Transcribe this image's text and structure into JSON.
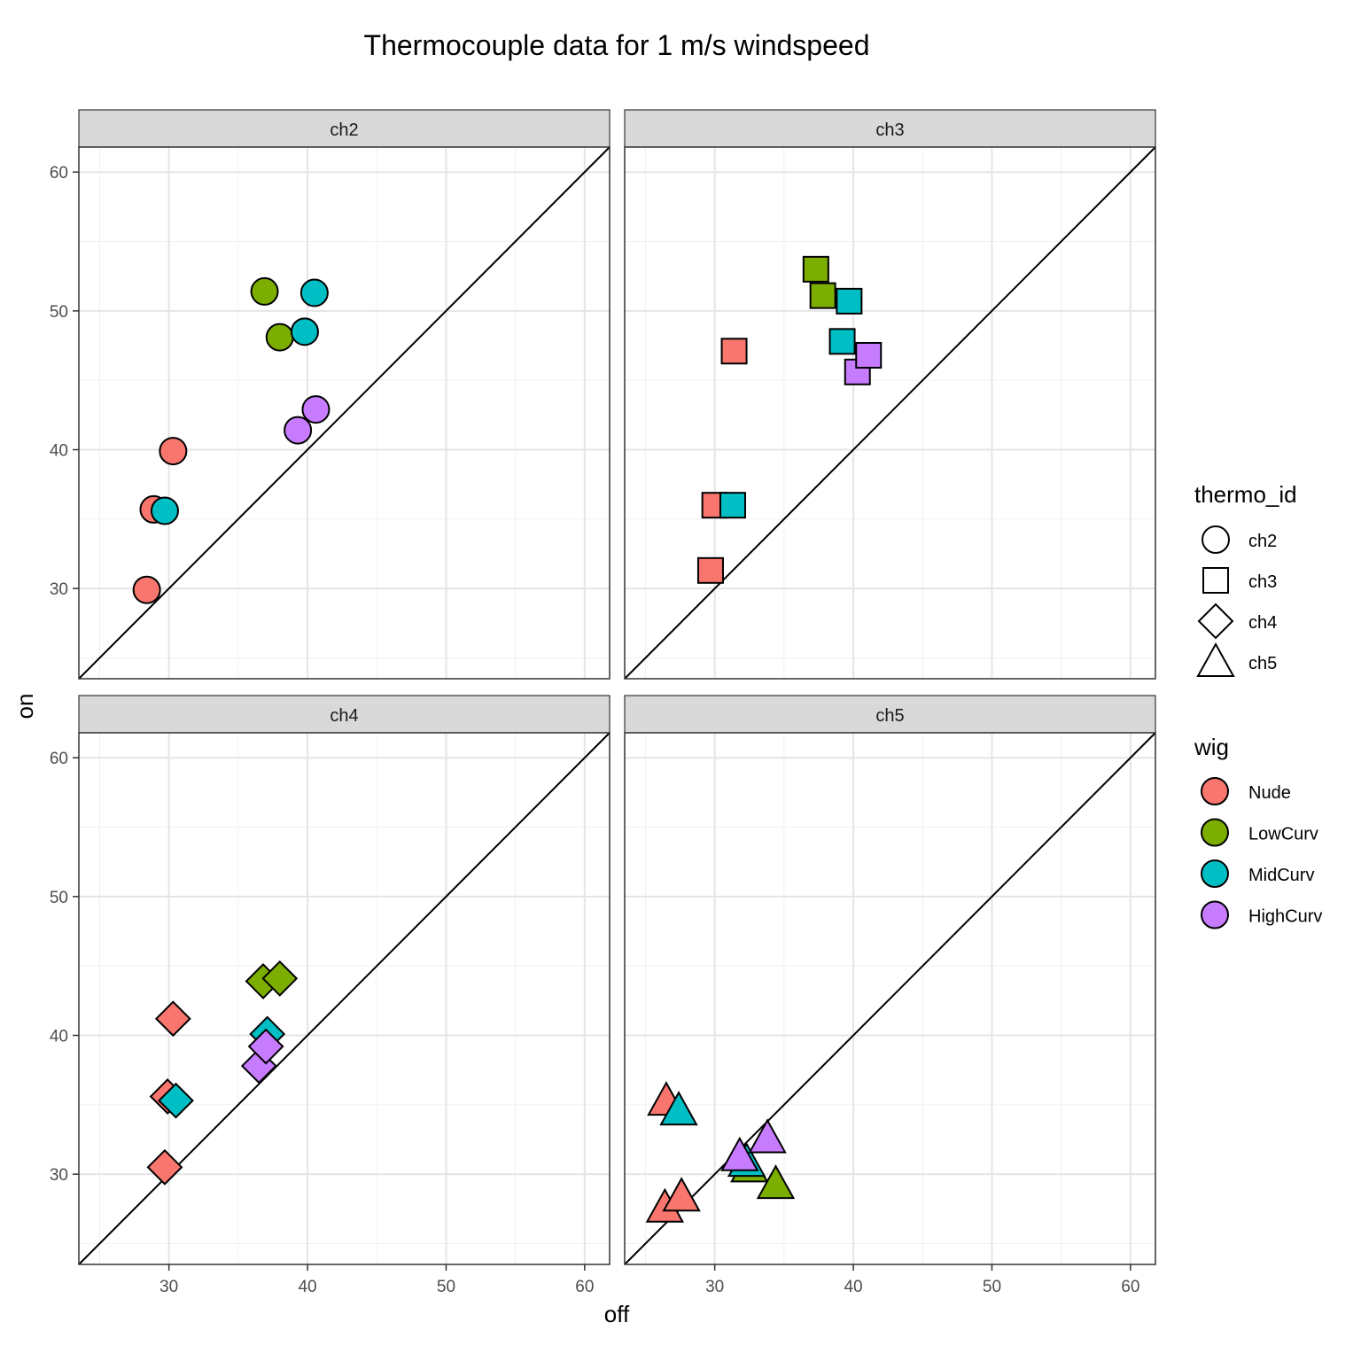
{
  "chart_data": {
    "type": "scatter",
    "title": "Thermocouple data for 1 m/s windspeed",
    "xlabel": "off",
    "ylabel": "on",
    "xlim": [
      23.5,
      61.8
    ],
    "ylim": [
      23.5,
      61.8
    ],
    "x_ticks": [
      30,
      40,
      50,
      60
    ],
    "y_ticks": [
      30,
      40,
      50,
      60
    ],
    "grid": true,
    "reference_line": "y = x",
    "facets": [
      "ch2",
      "ch3",
      "ch4",
      "ch5"
    ],
    "legend_position": "right",
    "legend_shape": {
      "title": "thermo_id",
      "entries": [
        {
          "label": "ch2",
          "shape": "circle"
        },
        {
          "label": "ch3",
          "shape": "square"
        },
        {
          "label": "ch4",
          "shape": "diamond"
        },
        {
          "label": "ch5",
          "shape": "triangle"
        }
      ]
    },
    "legend_fill": {
      "title": "wig",
      "entries": [
        {
          "label": "Nude",
          "color": "#F8766D"
        },
        {
          "label": "LowCurv",
          "color": "#7CAE00"
        },
        {
          "label": "MidCurv",
          "color": "#00BFC4"
        },
        {
          "label": "HighCurv",
          "color": "#C77CFF"
        }
      ]
    },
    "series": [
      {
        "facet": "ch2",
        "wig": "Nude",
        "points": [
          [
            28.4,
            29.9
          ],
          [
            28.9,
            35.7
          ],
          [
            30.3,
            39.9
          ]
        ]
      },
      {
        "facet": "ch2",
        "wig": "LowCurv",
        "points": [
          [
            36.9,
            51.4
          ],
          [
            38.0,
            48.1
          ]
        ]
      },
      {
        "facet": "ch2",
        "wig": "MidCurv",
        "points": [
          [
            29.7,
            35.6
          ],
          [
            39.8,
            48.5
          ],
          [
            40.5,
            51.3
          ]
        ]
      },
      {
        "facet": "ch2",
        "wig": "HighCurv",
        "points": [
          [
            39.3,
            41.4
          ],
          [
            40.6,
            42.9
          ]
        ]
      },
      {
        "facet": "ch3",
        "wig": "Nude",
        "points": [
          [
            29.7,
            31.3
          ],
          [
            30.0,
            36.0
          ],
          [
            31.4,
            47.1
          ]
        ]
      },
      {
        "facet": "ch3",
        "wig": "LowCurv",
        "points": [
          [
            37.3,
            53.0
          ],
          [
            37.8,
            51.1
          ]
        ]
      },
      {
        "facet": "ch3",
        "wig": "MidCurv",
        "points": [
          [
            31.3,
            36.0
          ],
          [
            39.2,
            47.8
          ],
          [
            39.7,
            50.7
          ]
        ]
      },
      {
        "facet": "ch3",
        "wig": "HighCurv",
        "points": [
          [
            40.3,
            45.6
          ],
          [
            41.1,
            46.8
          ]
        ]
      },
      {
        "facet": "ch4",
        "wig": "Nude",
        "points": [
          [
            29.7,
            30.5
          ],
          [
            29.9,
            35.6
          ],
          [
            30.3,
            41.2
          ]
        ]
      },
      {
        "facet": "ch4",
        "wig": "LowCurv",
        "points": [
          [
            36.8,
            43.9
          ],
          [
            38.0,
            44.1
          ]
        ]
      },
      {
        "facet": "ch4",
        "wig": "MidCurv",
        "points": [
          [
            30.5,
            35.3
          ],
          [
            37.1,
            40.1
          ]
        ]
      },
      {
        "facet": "ch4",
        "wig": "HighCurv",
        "points": [
          [
            36.5,
            37.8
          ],
          [
            37.0,
            39.2
          ]
        ]
      },
      {
        "facet": "ch5",
        "wig": "Nude",
        "points": [
          [
            26.4,
            27.6
          ],
          [
            27.6,
            28.4
          ],
          [
            26.5,
            35.3
          ]
        ]
      },
      {
        "facet": "ch5",
        "wig": "LowCurv",
        "points": [
          [
            32.5,
            30.5
          ],
          [
            34.4,
            29.3
          ]
        ]
      },
      {
        "facet": "ch5",
        "wig": "MidCurv",
        "points": [
          [
            27.4,
            34.6
          ],
          [
            32.3,
            30.9
          ]
        ]
      },
      {
        "facet": "ch5",
        "wig": "HighCurv",
        "points": [
          [
            31.8,
            31.3
          ],
          [
            33.8,
            32.6
          ]
        ]
      }
    ]
  }
}
